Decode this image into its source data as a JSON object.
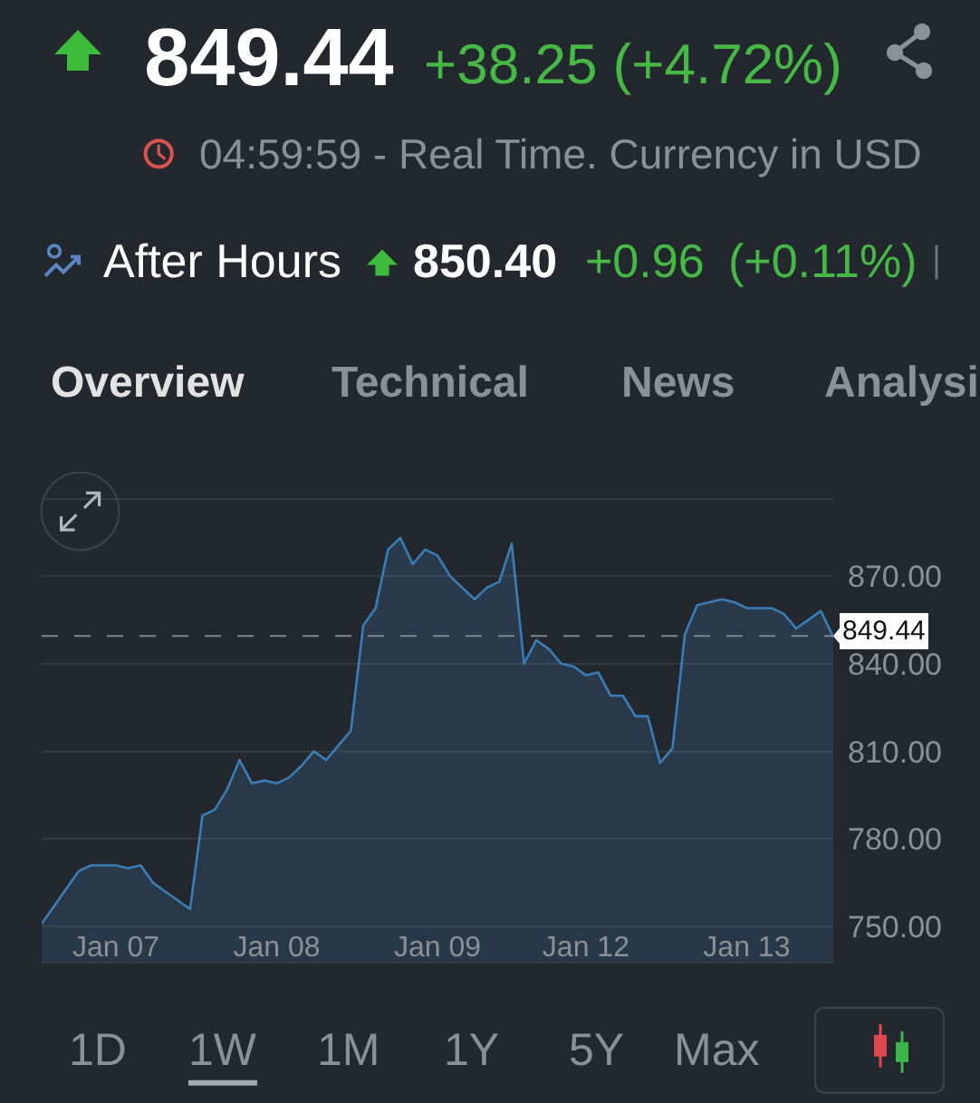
{
  "chart_data": {
    "type": "area",
    "title": "849.44",
    "subtitle": "04:59:59 - Real Time. Currency in USD",
    "annotations": [
      "+38.25 (+4.72%)",
      "After Hours",
      "850.40",
      "+0.96",
      "(+0.11%)",
      "Overview",
      "Technical",
      "News",
      "Analysi",
      "1D",
      "1W",
      "1M",
      "1Y",
      "5Y",
      "Max"
    ],
    "categories": [
      null,
      null,
      null,
      null,
      null,
      null,
      "Jan 07",
      null,
      null,
      null,
      null,
      null,
      null,
      null,
      null,
      null,
      null,
      null,
      null,
      "Jan 08",
      null,
      null,
      null,
      null,
      null,
      null,
      null,
      null,
      null,
      null,
      null,
      null,
      "Jan 09",
      null,
      null,
      null,
      null,
      null,
      null,
      null,
      null,
      null,
      null,
      null,
      "Jan 12",
      null,
      null,
      null,
      null,
      null,
      null,
      null,
      null,
      null,
      null,
      null,
      null,
      "Jan 13",
      null,
      null,
      null,
      null,
      null,
      null,
      null
    ],
    "series": [
      {
        "color": "#3b7db6",
        "values": [
          751,
          757,
          763,
          769,
          771,
          771,
          771,
          770,
          771,
          765,
          762,
          759,
          756,
          788,
          790,
          797,
          807,
          799,
          800,
          799,
          801,
          805,
          810,
          807,
          812,
          817,
          853,
          859,
          879,
          883,
          874,
          879,
          877,
          870,
          866,
          862,
          866,
          868,
          881,
          840,
          848,
          845,
          840,
          839,
          836,
          837,
          829,
          829,
          822,
          822,
          806,
          811,
          850,
          860,
          861,
          862,
          861,
          859,
          859,
          859,
          857,
          852,
          855,
          858,
          849
        ]
      }
    ],
    "ylim": [
      738,
      896
    ],
    "yticks": [
      {
        "value": 750,
        "label": "750.00"
      },
      {
        "value": 780,
        "label": "780.00"
      },
      {
        "value": 810,
        "label": "810.00"
      },
      {
        "value": 840,
        "label": "840.00"
      },
      {
        "value": 870,
        "label": "870.00"
      }
    ],
    "ref_lines": [
      {
        "axis": "y",
        "value": 849.44,
        "label": "849.44",
        "color": "#7f858c",
        "line_style": "dashed"
      }
    ],
    "grid": "y"
  }
}
